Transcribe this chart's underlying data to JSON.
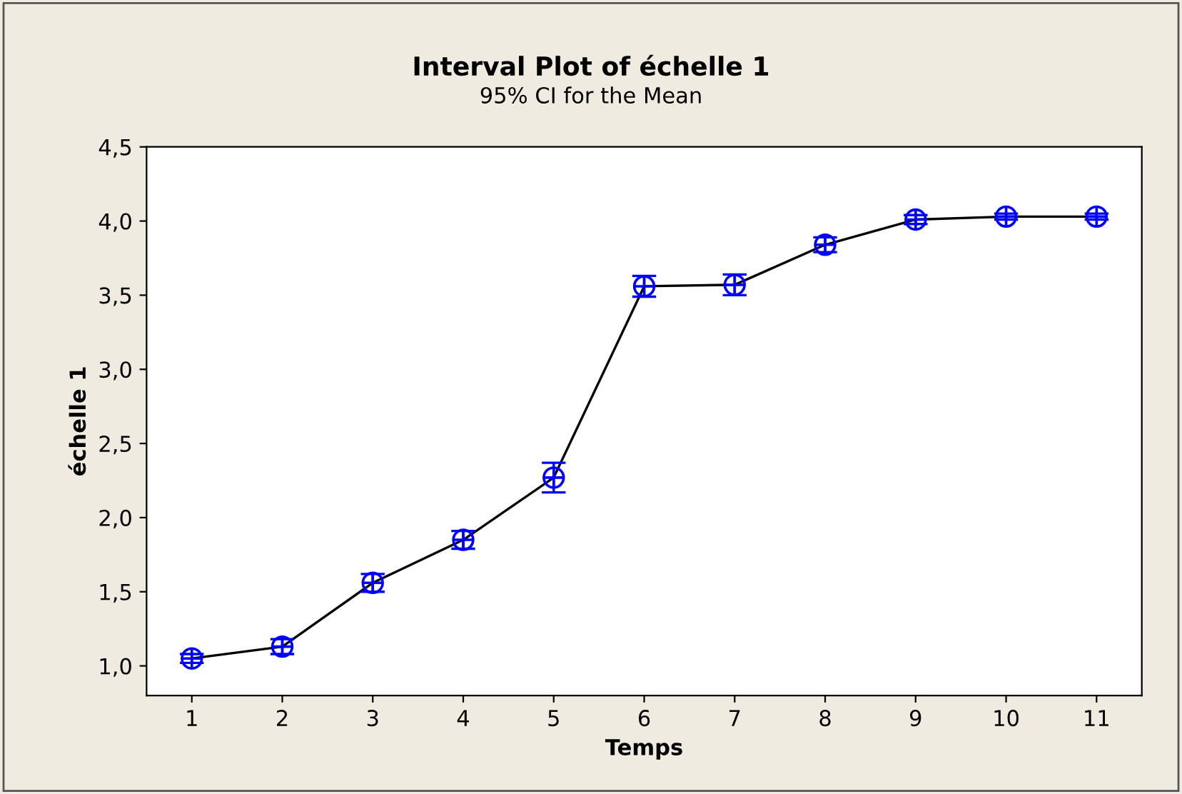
{
  "chart_data": {
    "type": "line",
    "title": "Interval Plot of échelle 1",
    "subtitle": "95% CI for the Mean",
    "xlabel": "Temps",
    "ylabel": "échelle 1",
    "categories": [
      "1",
      "2",
      "3",
      "4",
      "5",
      "6",
      "7",
      "8",
      "9",
      "10",
      "11"
    ],
    "series": [
      {
        "color": "#0000ff",
        "values": [
          1.05,
          1.13,
          1.56,
          1.85,
          2.27,
          3.56,
          3.57,
          3.84,
          4.01,
          4.03,
          4.03
        ],
        "errors": [
          0.03,
          0.05,
          0.06,
          0.06,
          0.1,
          0.07,
          0.07,
          0.05,
          0.03,
          0.02,
          0.02
        ]
      }
    ],
    "ylim": [
      0.8,
      4.5
    ],
    "yticks": [
      {
        "value": 1.0,
        "label": "1,0"
      },
      {
        "value": 1.5,
        "label": "1,5"
      },
      {
        "value": 2.0,
        "label": "2,0"
      },
      {
        "value": 2.5,
        "label": "2,5"
      },
      {
        "value": 3.0,
        "label": "3,0"
      },
      {
        "value": 3.5,
        "label": "3,5"
      },
      {
        "value": 4.0,
        "label": "4,0"
      },
      {
        "value": 4.5,
        "label": "4,5"
      }
    ],
    "marker": "circle",
    "grid": false,
    "legend": false
  }
}
